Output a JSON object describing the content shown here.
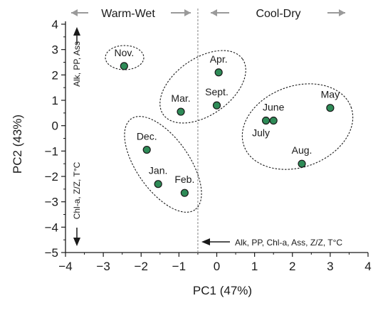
{
  "chart_data": {
    "type": "scatter",
    "xlabel": "PC1 (47%)",
    "ylabel": "PC2 (43%)",
    "xlim": [
      -4,
      4
    ],
    "ylim": [
      -5,
      4
    ],
    "xticks": [
      "-4",
      "-3",
      "-2",
      "-1",
      "0",
      "1",
      "2",
      "3",
      "4"
    ],
    "yticks": [
      "4",
      "3",
      "2",
      "1",
      "0",
      "-1",
      "-2",
      "-3",
      "-4",
      "-5"
    ],
    "points": [
      {
        "label": "Nov.",
        "x": -2.45,
        "y": 2.35
      },
      {
        "label": "Apr.",
        "x": 0.05,
        "y": 2.1
      },
      {
        "label": "Sept.",
        "x": 0.0,
        "y": 0.8
      },
      {
        "label": "Mar.",
        "x": -0.95,
        "y": 0.55
      },
      {
        "label": "May",
        "x": 3.0,
        "y": 0.7
      },
      {
        "label": "June",
        "x": 1.5,
        "y": 0.2
      },
      {
        "label": "July",
        "x": 1.3,
        "y": 0.2
      },
      {
        "label": "Aug.",
        "x": 2.25,
        "y": -1.5
      },
      {
        "label": "Dec.",
        "x": -1.85,
        "y": -0.95
      },
      {
        "label": "Jan.",
        "x": -1.55,
        "y": -2.3
      },
      {
        "label": "Feb.",
        "x": -0.85,
        "y": -2.65
      }
    ],
    "groups": [
      {
        "members": [
          "Nov."
        ]
      },
      {
        "members": [
          "Apr.",
          "Sept.",
          "Mar."
        ]
      },
      {
        "members": [
          "May",
          "June",
          "July",
          "Aug."
        ]
      },
      {
        "members": [
          "Dec.",
          "Jan.",
          "Feb."
        ]
      }
    ],
    "divider_x": -0.5,
    "region_labels": {
      "left": "Warm-Wet",
      "right": "Cool-Dry"
    },
    "annotations": {
      "up": "Alk, PP, Ass",
      "down": "Chl-a, Z/Z, T°C",
      "left": "Alk, PP, Chl-a, Ass, Z/Z, T°C"
    },
    "colors": {
      "point_fill": "#2e8b57",
      "point_stroke": "#1a1a1a",
      "arrow_gray": "#9a9a9a",
      "divider": "#a0a0a0"
    }
  }
}
